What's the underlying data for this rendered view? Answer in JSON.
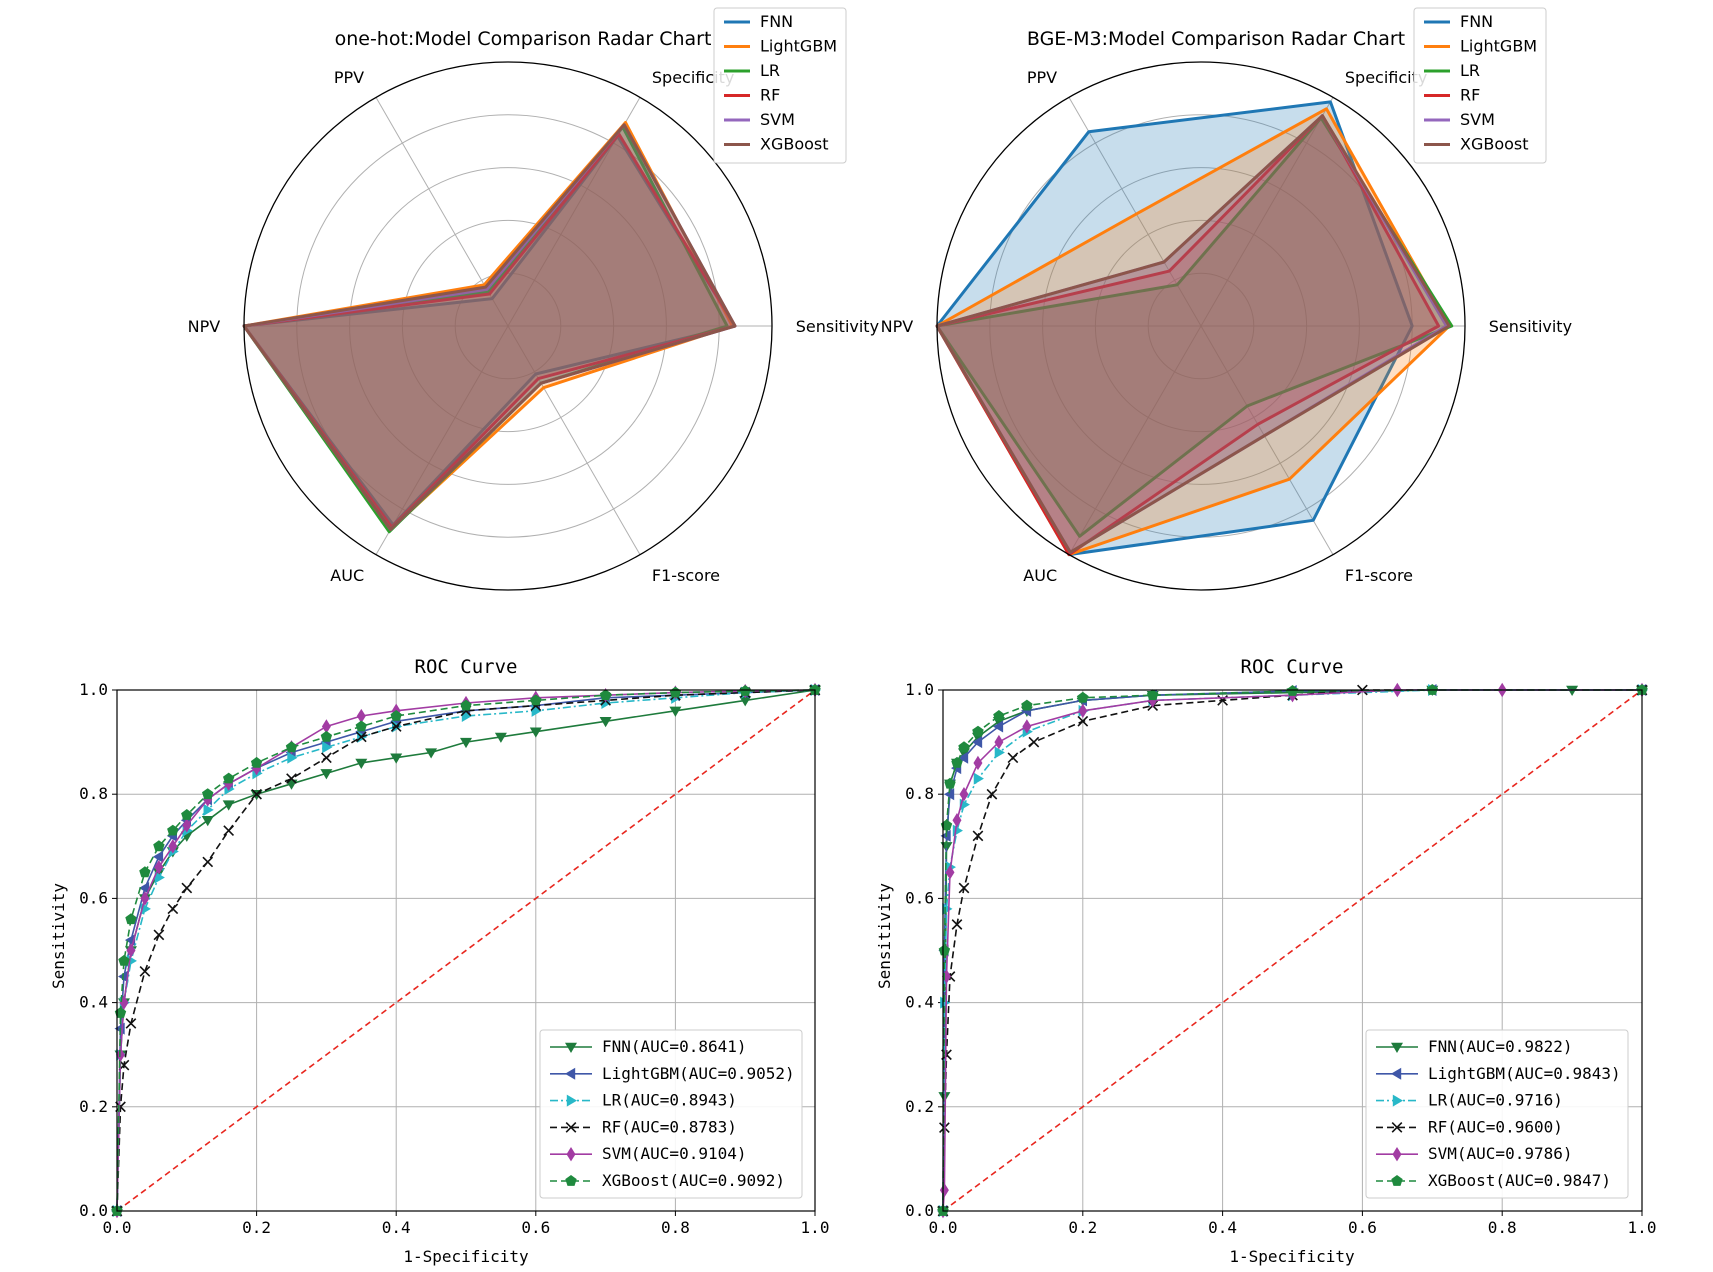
{
  "colors": {
    "FNN": "#1f77b4",
    "LightGBM": "#ff7f0e",
    "LR": "#2ca02c",
    "RF": "#d62728",
    "SVM": "#9467bd",
    "XGBoost": "#8c564b"
  },
  "roc_colors": {
    "FNN": "#1e7b3c",
    "LightGBM": "#3f57a8",
    "LR": "#28b8c8",
    "RF": "#111111",
    "SVM": "#a23ca3",
    "XGBoost": "#1f8a3e",
    "diag": "#e8261e"
  },
  "chart_data": [
    {
      "type": "radar",
      "title": "one-hot:Model Comparison Radar Chart",
      "axes": [
        "Sensitivity",
        "Specificity",
        "PPV",
        "NPV",
        "AUC",
        "F1-score"
      ],
      "rlim": [
        0,
        1
      ],
      "legend": "top-right",
      "series": [
        {
          "name": "FNN",
          "values": [
            0.86,
            0.83,
            0.12,
            1.0,
            0.87,
            0.21
          ]
        },
        {
          "name": "LightGBM",
          "values": [
            0.85,
            0.89,
            0.18,
            1.0,
            0.89,
            0.27
          ]
        },
        {
          "name": "LR",
          "values": [
            0.83,
            0.87,
            0.15,
            1.0,
            0.9,
            0.25
          ]
        },
        {
          "name": "RF",
          "values": [
            0.86,
            0.84,
            0.14,
            1.0,
            0.88,
            0.23
          ]
        },
        {
          "name": "SVM",
          "values": [
            0.86,
            0.88,
            0.16,
            1.0,
            0.89,
            0.25
          ]
        },
        {
          "name": "XGBoost",
          "values": [
            0.86,
            0.88,
            0.17,
            1.0,
            0.89,
            0.25
          ]
        }
      ]
    },
    {
      "type": "radar",
      "title": "BGE-M3:Model Comparison Radar Chart",
      "axes": [
        "Sensitivity",
        "Specificity",
        "PPV",
        "NPV",
        "AUC",
        "F1-score"
      ],
      "rlim": [
        0,
        1
      ],
      "legend": "top-right",
      "series": [
        {
          "name": "FNN",
          "values": [
            0.8,
            0.98,
            0.85,
            1.0,
            1.0,
            0.85
          ]
        },
        {
          "name": "LightGBM",
          "values": [
            0.94,
            0.95,
            0.49,
            1.0,
            1.0,
            0.67
          ]
        },
        {
          "name": "LR",
          "values": [
            0.95,
            0.91,
            0.18,
            1.0,
            0.92,
            0.35
          ]
        },
        {
          "name": "RF",
          "values": [
            0.9,
            0.92,
            0.24,
            1.0,
            1.0,
            0.43
          ]
        },
        {
          "name": "SVM",
          "values": [
            0.93,
            0.92,
            0.28,
            1.0,
            0.99,
            0.48
          ]
        },
        {
          "name": "XGBoost",
          "values": [
            0.94,
            0.92,
            0.28,
            1.0,
            0.99,
            0.48
          ]
        }
      ]
    },
    {
      "type": "line",
      "title": "ROC Curve",
      "xlabel": "1-Specificity",
      "ylabel": "Sensitivity",
      "xlim": [
        0,
        1
      ],
      "ylim": [
        0,
        1
      ],
      "xticks": [
        "0.0",
        "0.2",
        "0.4",
        "0.6",
        "0.8",
        "1.0"
      ],
      "yticks": [
        "0.0",
        "0.2",
        "0.4",
        "0.6",
        "0.8",
        "1.0"
      ],
      "grid": true,
      "legend": "bottom-right",
      "series": [
        {
          "name": "FNN",
          "label": "FNN(AUC=0.8641)",
          "marker": "triangle-down",
          "dash": "solid",
          "x": [
            0,
            0.005,
            0.01,
            0.02,
            0.04,
            0.06,
            0.08,
            0.1,
            0.13,
            0.16,
            0.2,
            0.25,
            0.3,
            0.35,
            0.4,
            0.45,
            0.5,
            0.55,
            0.6,
            0.7,
            0.8,
            0.9,
            1.0
          ],
          "y": [
            0,
            0.3,
            0.4,
            0.5,
            0.6,
            0.65,
            0.69,
            0.72,
            0.75,
            0.78,
            0.8,
            0.82,
            0.84,
            0.86,
            0.87,
            0.88,
            0.9,
            0.91,
            0.92,
            0.94,
            0.96,
            0.98,
            1.0
          ]
        },
        {
          "name": "LightGBM",
          "label": "LightGBM(AUC=0.9052)",
          "marker": "triangle-left",
          "dash": "solid",
          "x": [
            0,
            0.005,
            0.01,
            0.02,
            0.04,
            0.06,
            0.08,
            0.1,
            0.13,
            0.16,
            0.2,
            0.25,
            0.3,
            0.35,
            0.4,
            0.5,
            0.6,
            0.7,
            0.8,
            0.9,
            1.0
          ],
          "y": [
            0,
            0.35,
            0.45,
            0.52,
            0.62,
            0.68,
            0.72,
            0.75,
            0.79,
            0.82,
            0.85,
            0.88,
            0.9,
            0.92,
            0.94,
            0.96,
            0.97,
            0.985,
            0.99,
            0.995,
            1.0
          ]
        },
        {
          "name": "LR",
          "label": "LR(AUC=0.8943)",
          "marker": "triangle-right",
          "dash": "dashdot",
          "x": [
            0,
            0.005,
            0.01,
            0.02,
            0.04,
            0.06,
            0.08,
            0.1,
            0.13,
            0.16,
            0.2,
            0.25,
            0.3,
            0.35,
            0.4,
            0.5,
            0.6,
            0.7,
            0.8,
            0.9,
            1.0
          ],
          "y": [
            0,
            0.3,
            0.4,
            0.48,
            0.58,
            0.64,
            0.69,
            0.73,
            0.77,
            0.81,
            0.84,
            0.87,
            0.89,
            0.91,
            0.93,
            0.95,
            0.96,
            0.975,
            0.985,
            0.995,
            1.0
          ]
        },
        {
          "name": "RF",
          "label": "RF(AUC=0.8783)",
          "marker": "x",
          "dash": "dashed",
          "x": [
            0,
            0.005,
            0.01,
            0.02,
            0.04,
            0.06,
            0.08,
            0.1,
            0.13,
            0.16,
            0.2,
            0.25,
            0.3,
            0.35,
            0.4,
            0.5,
            0.6,
            0.7,
            0.8,
            0.9,
            1.0
          ],
          "y": [
            0,
            0.2,
            0.28,
            0.36,
            0.46,
            0.53,
            0.58,
            0.62,
            0.67,
            0.73,
            0.8,
            0.83,
            0.87,
            0.91,
            0.93,
            0.96,
            0.97,
            0.98,
            0.99,
            0.995,
            1.0
          ]
        },
        {
          "name": "SVM",
          "label": "SVM(AUC=0.9104)",
          "marker": "diamond",
          "dash": "solid",
          "x": [
            0,
            0.005,
            0.01,
            0.02,
            0.04,
            0.06,
            0.08,
            0.1,
            0.13,
            0.16,
            0.2,
            0.25,
            0.3,
            0.35,
            0.4,
            0.5,
            0.6,
            0.7,
            0.8,
            0.9,
            1.0
          ],
          "y": [
            0,
            0.3,
            0.4,
            0.5,
            0.6,
            0.66,
            0.7,
            0.74,
            0.79,
            0.82,
            0.85,
            0.89,
            0.93,
            0.95,
            0.96,
            0.975,
            0.985,
            0.99,
            0.995,
            0.998,
            1.0
          ]
        },
        {
          "name": "XGBoost",
          "label": "XGBoost(AUC=0.9092)",
          "marker": "pentagon",
          "dash": "dashed",
          "x": [
            0,
            0.005,
            0.01,
            0.02,
            0.04,
            0.06,
            0.08,
            0.1,
            0.13,
            0.16,
            0.2,
            0.25,
            0.3,
            0.35,
            0.4,
            0.5,
            0.6,
            0.7,
            0.8,
            0.9,
            1.0
          ],
          "y": [
            0,
            0.38,
            0.48,
            0.56,
            0.65,
            0.7,
            0.73,
            0.76,
            0.8,
            0.83,
            0.86,
            0.89,
            0.91,
            0.93,
            0.95,
            0.97,
            0.98,
            0.99,
            0.995,
            0.998,
            1.0
          ]
        }
      ]
    },
    {
      "type": "line",
      "title": "ROC Curve",
      "xlabel": "1-Specificity",
      "ylabel": "Sensitivity",
      "xlim": [
        0,
        1
      ],
      "ylim": [
        0,
        1
      ],
      "xticks": [
        "0.0",
        "0.2",
        "0.4",
        "0.6",
        "0.8",
        "1.0"
      ],
      "yticks": [
        "0.0",
        "0.2",
        "0.4",
        "0.6",
        "0.8",
        "1.0"
      ],
      "grid": true,
      "legend": "bottom-right",
      "series": [
        {
          "name": "FNN",
          "label": "FNN(AUC=0.9822)",
          "marker": "triangle-down",
          "dash": "solid",
          "x": [
            0,
            0.002,
            0.005,
            0.01,
            0.02,
            0.03,
            0.05,
            0.08,
            0.12,
            0.2,
            0.3,
            0.5,
            0.7,
            0.9,
            1.0
          ],
          "y": [
            0,
            0.22,
            0.7,
            0.82,
            0.86,
            0.88,
            0.91,
            0.94,
            0.96,
            0.98,
            0.99,
            0.995,
            1.0,
            1.0,
            1.0
          ]
        },
        {
          "name": "LightGBM",
          "label": "LightGBM(AUC=0.9843)",
          "marker": "triangle-left",
          "dash": "solid",
          "x": [
            0,
            0.002,
            0.005,
            0.01,
            0.02,
            0.03,
            0.05,
            0.08,
            0.12,
            0.2,
            0.3,
            0.5,
            0.7,
            1.0
          ],
          "y": [
            0,
            0.5,
            0.72,
            0.8,
            0.85,
            0.87,
            0.9,
            0.93,
            0.96,
            0.98,
            0.99,
            0.998,
            1.0,
            1.0
          ]
        },
        {
          "name": "LR",
          "label": "LR(AUC=0.9716)",
          "marker": "triangle-right",
          "dash": "dashdot",
          "x": [
            0,
            0.002,
            0.005,
            0.01,
            0.02,
            0.03,
            0.05,
            0.08,
            0.12,
            0.2,
            0.3,
            0.5,
            0.7,
            1.0
          ],
          "y": [
            0,
            0.4,
            0.58,
            0.66,
            0.73,
            0.78,
            0.83,
            0.88,
            0.92,
            0.96,
            0.98,
            0.99,
            1.0,
            1.0
          ]
        },
        {
          "name": "RF",
          "label": "RF(AUC=0.9600)",
          "marker": "x",
          "dash": "dashed",
          "x": [
            0,
            0.002,
            0.005,
            0.01,
            0.02,
            0.03,
            0.05,
            0.07,
            0.1,
            0.13,
            0.2,
            0.3,
            0.4,
            0.5,
            0.6,
            1.0
          ],
          "y": [
            0,
            0.16,
            0.3,
            0.45,
            0.55,
            0.62,
            0.72,
            0.8,
            0.87,
            0.9,
            0.94,
            0.97,
            0.98,
            0.99,
            1.0,
            1.0
          ]
        },
        {
          "name": "SVM",
          "label": "SVM(AUC=0.9786)",
          "marker": "diamond",
          "dash": "solid",
          "x": [
            0,
            0.002,
            0.005,
            0.01,
            0.02,
            0.03,
            0.05,
            0.08,
            0.12,
            0.2,
            0.3,
            0.5,
            0.65,
            0.8,
            1.0
          ],
          "y": [
            0,
            0.04,
            0.45,
            0.65,
            0.75,
            0.8,
            0.86,
            0.9,
            0.93,
            0.96,
            0.98,
            0.99,
            1.0,
            1.0,
            1.0
          ]
        },
        {
          "name": "XGBoost",
          "label": "XGBoost(AUC=0.9847)",
          "marker": "pentagon",
          "dash": "dashed",
          "x": [
            0,
            0.002,
            0.005,
            0.01,
            0.02,
            0.03,
            0.05,
            0.08,
            0.12,
            0.2,
            0.3,
            0.5,
            0.7,
            1.0
          ],
          "y": [
            0,
            0.5,
            0.74,
            0.82,
            0.86,
            0.89,
            0.92,
            0.95,
            0.97,
            0.985,
            0.99,
            0.998,
            1.0,
            1.0
          ]
        }
      ]
    }
  ]
}
